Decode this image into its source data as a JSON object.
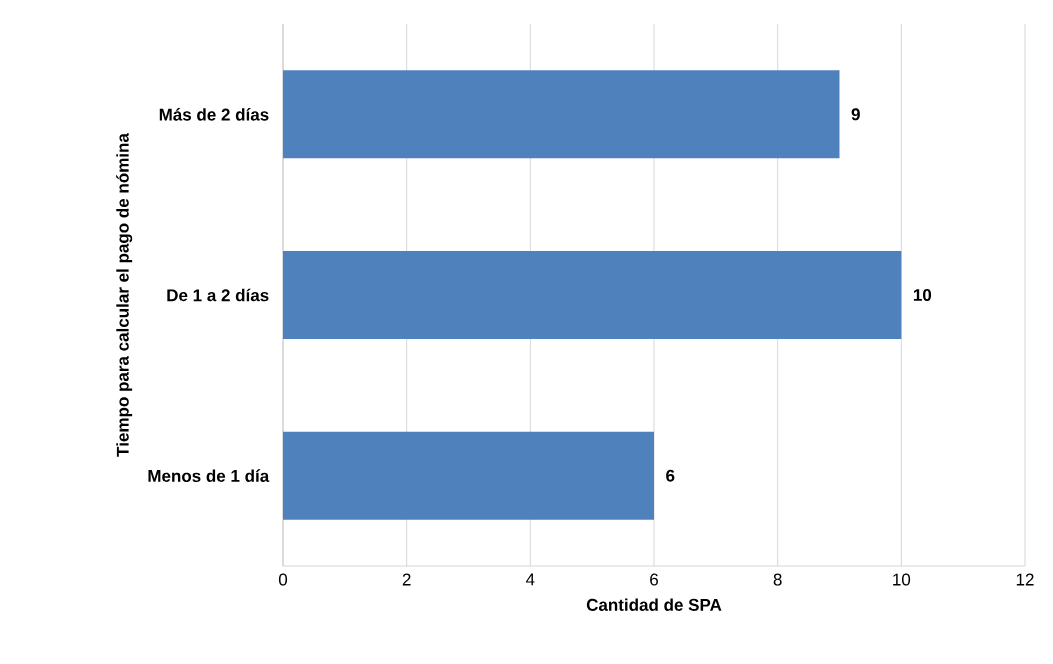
{
  "chart_data": {
    "type": "bar",
    "orientation": "horizontal",
    "xlabel": "Cantidad de SPA",
    "ylabel": "Tiempo para calcular el pago de nómina",
    "categories": [
      "Más de 2 días",
      "De 1 a 2 días",
      "Menos de 1 día"
    ],
    "values": [
      9,
      10,
      6
    ],
    "value_labels": [
      "9",
      "10",
      "6"
    ],
    "color": "#4f81bd",
    "xlim": [
      0,
      12
    ],
    "xticks": [
      0,
      2,
      4,
      6,
      8,
      10,
      12
    ],
    "grid": "x"
  }
}
